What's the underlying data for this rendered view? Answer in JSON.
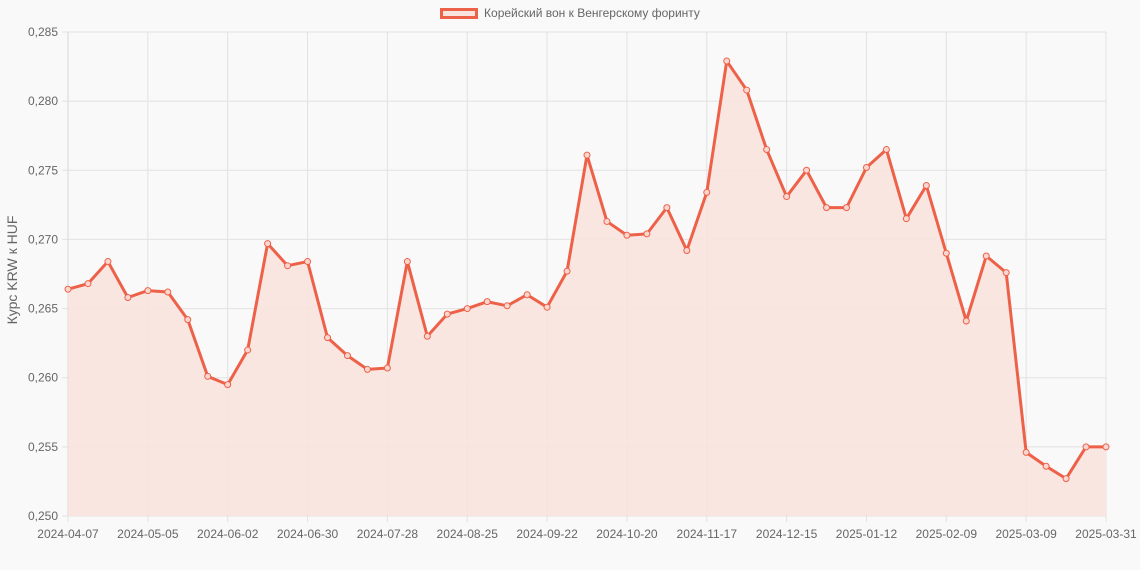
{
  "chart_data": {
    "type": "line",
    "title": "",
    "legend": [
      "Корейский вон к Венгерскому форинту"
    ],
    "legend_position": "top",
    "xlabel": "",
    "ylabel": "Курс KRW к HUF",
    "ylim": [
      0.25,
      0.285
    ],
    "yticks": [
      "0,250",
      "0,255",
      "0,260",
      "0,265",
      "0,270",
      "0,275",
      "0,280",
      "0,285"
    ],
    "xticks": [
      "2024-04-07",
      "2024-05-05",
      "2024-06-02",
      "2024-06-30",
      "2024-07-28",
      "2024-08-25",
      "2024-09-22",
      "2024-10-20",
      "2024-11-17",
      "2024-12-15",
      "2025-01-12",
      "2025-02-09",
      "2025-03-09",
      "2025-03-31"
    ],
    "grid": true,
    "fill": true,
    "series": [
      {
        "name": "Корейский вон к Венгерскому форинту",
        "color": "#ee6149",
        "fill_color": "#f9e3de",
        "values": [
          0.2664,
          0.2668,
          0.2684,
          0.2658,
          0.2663,
          0.2662,
          0.2642,
          0.2601,
          0.2595,
          0.262,
          0.2697,
          0.2681,
          0.2684,
          0.2629,
          0.2616,
          0.2606,
          0.2607,
          0.2684,
          0.263,
          0.2646,
          0.265,
          0.2655,
          0.2652,
          0.266,
          0.2651,
          0.2677,
          0.2761,
          0.2713,
          0.2703,
          0.2704,
          0.2723,
          0.2692,
          0.2734,
          0.2829,
          0.2808,
          0.2765,
          0.2731,
          0.275,
          0.2723,
          0.2723,
          0.2752,
          0.2765,
          0.2715,
          0.2739,
          0.269,
          0.2641,
          0.2688,
          0.2676,
          0.2546,
          0.2536,
          0.2527,
          0.255,
          0.255
        ]
      }
    ]
  },
  "legend": {
    "label": "Корейский вон к Венгерскому форинту"
  },
  "yaxis": {
    "label": "Курс KRW к HUF"
  }
}
